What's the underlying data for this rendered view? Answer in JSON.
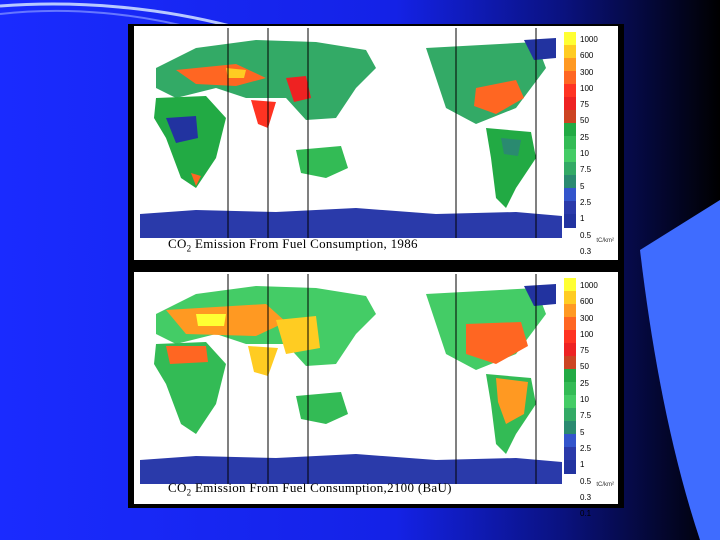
{
  "panels": [
    {
      "caption_prefix": "CO",
      "caption_sub": "2",
      "caption_text": " Emission From Fuel Consumption, 1986"
    },
    {
      "caption_prefix": "CO",
      "caption_sub": "2",
      "caption_text": " Emission From Fuel Consumption,2100  (BaU)"
    }
  ],
  "legend": {
    "ticks": [
      "1000",
      "600",
      "300",
      "100",
      "75",
      "50",
      "25",
      "10",
      "7.5",
      "5",
      "2.5",
      "1",
      "0.5",
      "0.3",
      "0.1"
    ],
    "colors": [
      "#ffff33",
      "#ffcc22",
      "#ff9922",
      "#ff6622",
      "#ff3322",
      "#ee2222",
      "#cc4422",
      "#22aa44",
      "#33bb55",
      "#44cc66",
      "#33aa66",
      "#2a8a70",
      "#3355cc",
      "#2a3aaa",
      "#2233a0"
    ],
    "unit": "tC/km²"
  },
  "colors": {
    "background_left": "#1a2bff",
    "background_right": "#000000",
    "accent": "#5599ff"
  }
}
